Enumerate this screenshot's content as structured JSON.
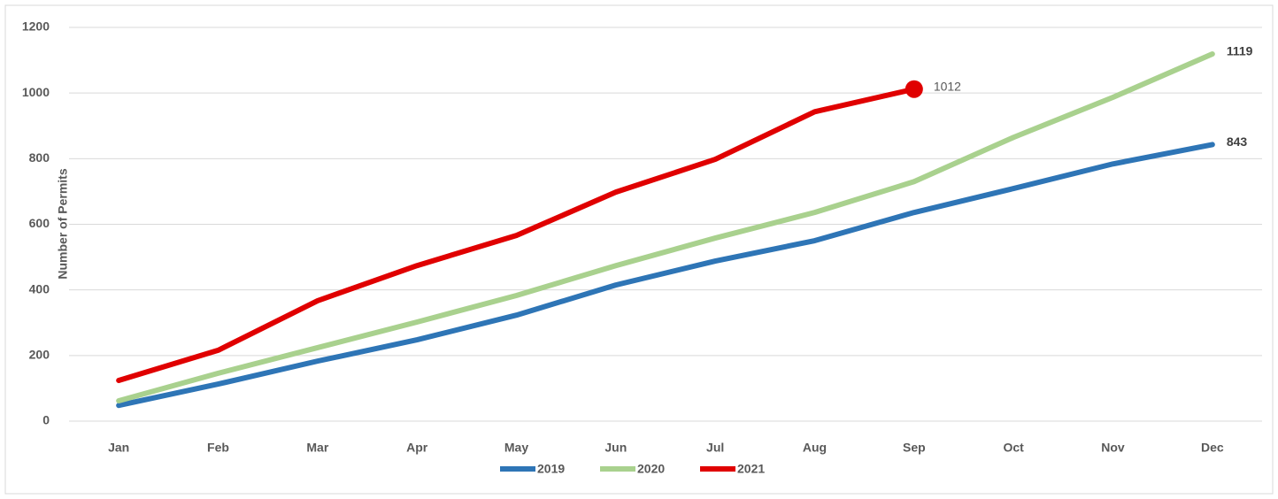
{
  "chart_data": {
    "type": "line",
    "y_label": "Number of Permits",
    "categories": [
      "Jan",
      "Feb",
      "Mar",
      "Apr",
      "May",
      "Jun",
      "Jul",
      "Aug",
      "Sep",
      "Oct",
      "Nov",
      "Dec"
    ],
    "series": [
      {
        "name": "2019",
        "color": "#2e75b6",
        "values": [
          48,
          113,
          183,
          248,
          323,
          415,
          488,
          550,
          636,
          709,
          784,
          843
        ],
        "value_labels": [
          null,
          null,
          null,
          null,
          null,
          null,
          null,
          null,
          null,
          null,
          null,
          "843"
        ]
      },
      {
        "name": "2020",
        "color": "#a9d18e",
        "values": [
          62,
          146,
          224,
          302,
          383,
          474,
          558,
          636,
          730,
          865,
          987,
          1119
        ],
        "value_labels": [
          null,
          null,
          null,
          null,
          null,
          null,
          null,
          null,
          null,
          null,
          null,
          "1119"
        ]
      },
      {
        "name": "2021",
        "color": "#e00000",
        "values": [
          124,
          216,
          367,
          474,
          566,
          698,
          798,
          943,
          1012,
          null,
          null,
          null
        ],
        "value_labels": [
          null,
          null,
          null,
          null,
          null,
          null,
          null,
          null,
          "1012",
          null,
          null,
          null
        ]
      }
    ],
    "ylim": [
      0,
      1200
    ],
    "yticks": [
      0,
      200,
      400,
      600,
      800,
      1000,
      1200
    ],
    "grid": true,
    "legend": "bottom"
  }
}
